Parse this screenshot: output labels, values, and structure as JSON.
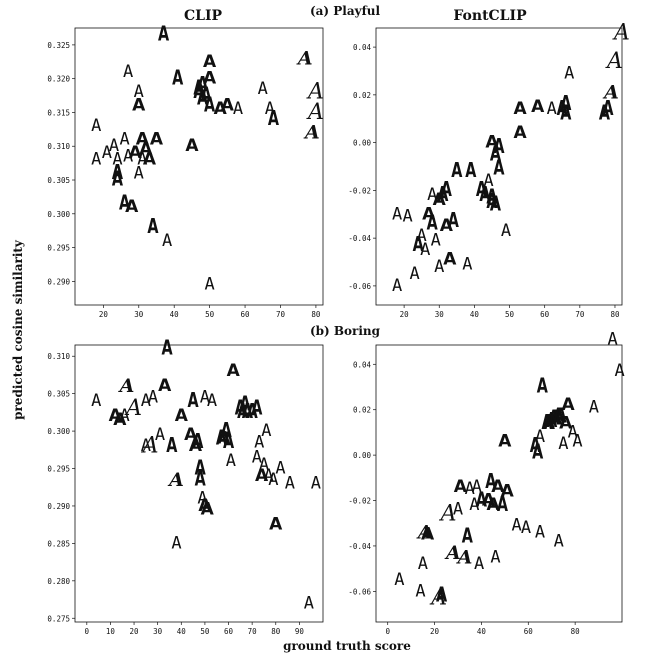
{
  "column_titles": [
    "CLIP",
    "FontCLIP"
  ],
  "y_axis_label": "predicted cosine similarity",
  "x_axis_label": "ground truth score",
  "chart_data": [
    {
      "type": "scatter",
      "row_title": "(a) Playful",
      "column": "CLIP",
      "xlim": [
        12,
        82
      ],
      "ylim": [
        0.2865,
        0.3275
      ],
      "xticks": [
        20,
        30,
        40,
        50,
        60,
        70,
        80
      ],
      "yticks": [
        0.29,
        0.295,
        0.3,
        0.305,
        0.31,
        0.315,
        0.32,
        0.325
      ],
      "ytick_format": 3,
      "marker": "letter A rendered in each font",
      "points": [
        {
          "x": 18,
          "y": 0.313,
          "w": 0
        },
        {
          "x": 18,
          "y": 0.308,
          "w": 0
        },
        {
          "x": 21,
          "y": 0.309,
          "w": 0
        },
        {
          "x": 23,
          "y": 0.31,
          "w": 0
        },
        {
          "x": 24,
          "y": 0.308,
          "w": 0
        },
        {
          "x": 24,
          "y": 0.306,
          "w": 2
        },
        {
          "x": 24,
          "y": 0.305,
          "w": 2
        },
        {
          "x": 26,
          "y": 0.311,
          "w": 0
        },
        {
          "x": 27,
          "y": 0.3085,
          "w": 0
        },
        {
          "x": 27,
          "y": 0.321,
          "w": 0
        },
        {
          "x": 26,
          "y": 0.3015,
          "w": 2
        },
        {
          "x": 28,
          "y": 0.301,
          "w": 1
        },
        {
          "x": 29,
          "y": 0.309,
          "w": 1
        },
        {
          "x": 30,
          "y": 0.318,
          "w": 0
        },
        {
          "x": 30,
          "y": 0.316,
          "w": 1
        },
        {
          "x": 30,
          "y": 0.306,
          "w": 0
        },
        {
          "x": 31,
          "y": 0.308,
          "w": 0
        },
        {
          "x": 31,
          "y": 0.311,
          "w": 1
        },
        {
          "x": 32,
          "y": 0.3095,
          "w": 1
        },
        {
          "x": 33,
          "y": 0.308,
          "w": 1
        },
        {
          "x": 35,
          "y": 0.311,
          "w": 1
        },
        {
          "x": 34,
          "y": 0.298,
          "w": 2
        },
        {
          "x": 38,
          "y": 0.296,
          "w": 0
        },
        {
          "x": 37,
          "y": 0.3265,
          "w": 2
        },
        {
          "x": 41,
          "y": 0.32,
          "w": 2
        },
        {
          "x": 45,
          "y": 0.31,
          "w": 1
        },
        {
          "x": 47,
          "y": 0.318,
          "w": 2
        },
        {
          "x": 47,
          "y": 0.3185,
          "w": 2
        },
        {
          "x": 48,
          "y": 0.319,
          "w": 2
        },
        {
          "x": 48,
          "y": 0.317,
          "w": 2
        },
        {
          "x": 49,
          "y": 0.3175,
          "w": 2
        },
        {
          "x": 50,
          "y": 0.3225,
          "w": 1
        },
        {
          "x": 50,
          "y": 0.32,
          "w": 1
        },
        {
          "x": 50,
          "y": 0.316,
          "w": 2
        },
        {
          "x": 53,
          "y": 0.3155,
          "w": 1
        },
        {
          "x": 55,
          "y": 0.316,
          "w": 1
        },
        {
          "x": 58,
          "y": 0.3155,
          "w": 0
        },
        {
          "x": 50,
          "y": 0.2895,
          "w": 0
        },
        {
          "x": 65,
          "y": 0.3185,
          "w": 0
        },
        {
          "x": 67,
          "y": 0.3155,
          "w": 0
        },
        {
          "x": 68,
          "y": 0.314,
          "w": 2
        },
        {
          "x": 77,
          "y": 0.323,
          "w": 3
        },
        {
          "x": 80,
          "y": 0.318,
          "w": 4
        },
        {
          "x": 80,
          "y": 0.315,
          "w": 4
        },
        {
          "x": 79,
          "y": 0.312,
          "w": 3
        }
      ]
    },
    {
      "type": "scatter",
      "row_title": "(a) Playful",
      "column": "FontCLIP",
      "xlim": [
        12,
        82
      ],
      "ylim": [
        -0.068,
        0.048
      ],
      "xticks": [
        20,
        30,
        40,
        50,
        60,
        70,
        80
      ],
      "yticks": [
        -0.06,
        -0.04,
        -0.02,
        0.0,
        0.02,
        0.04
      ],
      "ytick_format": 2,
      "marker": "letter A rendered in each font",
      "points": [
        {
          "x": 18,
          "y": -0.06,
          "w": 0
        },
        {
          "x": 18,
          "y": -0.03,
          "w": 0
        },
        {
          "x": 21,
          "y": -0.031,
          "w": 0
        },
        {
          "x": 23,
          "y": -0.055,
          "w": 0
        },
        {
          "x": 24,
          "y": -0.043,
          "w": 2
        },
        {
          "x": 25,
          "y": -0.039,
          "w": 0
        },
        {
          "x": 26,
          "y": -0.045,
          "w": 0
        },
        {
          "x": 27,
          "y": -0.03,
          "w": 1
        },
        {
          "x": 28,
          "y": -0.022,
          "w": 0
        },
        {
          "x": 28,
          "y": -0.034,
          "w": 2
        },
        {
          "x": 29,
          "y": -0.041,
          "w": 0
        },
        {
          "x": 30,
          "y": -0.024,
          "w": 1
        },
        {
          "x": 30,
          "y": -0.052,
          "w": 0
        },
        {
          "x": 31,
          "y": -0.022,
          "w": 2
        },
        {
          "x": 32,
          "y": -0.02,
          "w": 2
        },
        {
          "x": 32,
          "y": -0.035,
          "w": 1
        },
        {
          "x": 33,
          "y": -0.049,
          "w": 1
        },
        {
          "x": 34,
          "y": -0.033,
          "w": 2
        },
        {
          "x": 35,
          "y": -0.012,
          "w": 2
        },
        {
          "x": 38,
          "y": -0.051,
          "w": 0
        },
        {
          "x": 39,
          "y": -0.012,
          "w": 2
        },
        {
          "x": 42,
          "y": -0.02,
          "w": 2
        },
        {
          "x": 43,
          "y": -0.022,
          "w": 2
        },
        {
          "x": 44,
          "y": -0.016,
          "w": 0
        },
        {
          "x": 45,
          "y": -0.025,
          "w": 2
        },
        {
          "x": 45,
          "y": -0.023,
          "w": 2
        },
        {
          "x": 46,
          "y": -0.026,
          "w": 2
        },
        {
          "x": 45,
          "y": 0.0,
          "w": 1
        },
        {
          "x": 46,
          "y": -0.005,
          "w": 2
        },
        {
          "x": 47,
          "y": -0.002,
          "w": 2
        },
        {
          "x": 47,
          "y": -0.011,
          "w": 2
        },
        {
          "x": 49,
          "y": -0.037,
          "w": 0
        },
        {
          "x": 53,
          "y": 0.014,
          "w": 1
        },
        {
          "x": 53,
          "y": 0.004,
          "w": 1
        },
        {
          "x": 58,
          "y": 0.015,
          "w": 1
        },
        {
          "x": 62,
          "y": 0.014,
          "w": 0
        },
        {
          "x": 65,
          "y": 0.014,
          "w": 2
        },
        {
          "x": 66,
          "y": 0.012,
          "w": 2
        },
        {
          "x": 66,
          "y": 0.016,
          "w": 2
        },
        {
          "x": 67,
          "y": 0.029,
          "w": 0
        },
        {
          "x": 77,
          "y": 0.012,
          "w": 2
        },
        {
          "x": 78,
          "y": 0.014,
          "w": 2
        },
        {
          "x": 79,
          "y": 0.021,
          "w": 3
        },
        {
          "x": 80,
          "y": 0.034,
          "w": 4
        },
        {
          "x": 82,
          "y": 0.046,
          "w": 4
        }
      ]
    },
    {
      "type": "scatter",
      "row_title": "(b) Boring",
      "column": "CLIP",
      "xlim": [
        -5,
        100
      ],
      "ylim": [
        0.2745,
        0.3115
      ],
      "xticks": [
        0,
        10,
        20,
        30,
        40,
        50,
        60,
        70,
        80,
        90
      ],
      "yticks": [
        0.275,
        0.28,
        0.285,
        0.29,
        0.295,
        0.3,
        0.305,
        0.31
      ],
      "ytick_format": 3,
      "marker": "letter A rendered in each font",
      "points": [
        {
          "x": 4,
          "y": 0.304,
          "w": 0
        },
        {
          "x": 12,
          "y": 0.302,
          "w": 1
        },
        {
          "x": 14,
          "y": 0.3015,
          "w": 1
        },
        {
          "x": 16,
          "y": 0.302,
          "w": 0
        },
        {
          "x": 17,
          "y": 0.306,
          "w": 3
        },
        {
          "x": 20,
          "y": 0.303,
          "w": 4
        },
        {
          "x": 25,
          "y": 0.304,
          "w": 0
        },
        {
          "x": 25,
          "y": 0.298,
          "w": 0
        },
        {
          "x": 27,
          "y": 0.298,
          "w": 4
        },
        {
          "x": 28,
          "y": 0.3045,
          "w": 0
        },
        {
          "x": 31,
          "y": 0.2995,
          "w": 0
        },
        {
          "x": 33,
          "y": 0.306,
          "w": 1
        },
        {
          "x": 34,
          "y": 0.311,
          "w": 2
        },
        {
          "x": 36,
          "y": 0.298,
          "w": 2
        },
        {
          "x": 38,
          "y": 0.285,
          "w": 0
        },
        {
          "x": 38,
          "y": 0.2935,
          "w": 3
        },
        {
          "x": 40,
          "y": 0.302,
          "w": 1
        },
        {
          "x": 44,
          "y": 0.2995,
          "w": 1
        },
        {
          "x": 45,
          "y": 0.304,
          "w": 2
        },
        {
          "x": 46,
          "y": 0.298,
          "w": 1
        },
        {
          "x": 47,
          "y": 0.2985,
          "w": 2
        },
        {
          "x": 48,
          "y": 0.295,
          "w": 2
        },
        {
          "x": 48,
          "y": 0.2935,
          "w": 2
        },
        {
          "x": 49,
          "y": 0.291,
          "w": 0
        },
        {
          "x": 50,
          "y": 0.29,
          "w": 1
        },
        {
          "x": 51,
          "y": 0.2895,
          "w": 1
        },
        {
          "x": 50,
          "y": 0.3045,
          "w": 0
        },
        {
          "x": 53,
          "y": 0.304,
          "w": 0
        },
        {
          "x": 57,
          "y": 0.299,
          "w": 2
        },
        {
          "x": 58,
          "y": 0.299,
          "w": 1
        },
        {
          "x": 59,
          "y": 0.3,
          "w": 2
        },
        {
          "x": 60,
          "y": 0.2985,
          "w": 2
        },
        {
          "x": 61,
          "y": 0.296,
          "w": 0
        },
        {
          "x": 62,
          "y": 0.308,
          "w": 1
        },
        {
          "x": 65,
          "y": 0.303,
          "w": 2
        },
        {
          "x": 66,
          "y": 0.3025,
          "w": 2
        },
        {
          "x": 67,
          "y": 0.3035,
          "w": 2
        },
        {
          "x": 68,
          "y": 0.3025,
          "w": 2
        },
        {
          "x": 70,
          "y": 0.3025,
          "w": 2
        },
        {
          "x": 72,
          "y": 0.303,
          "w": 2
        },
        {
          "x": 72,
          "y": 0.2965,
          "w": 0
        },
        {
          "x": 73,
          "y": 0.2985,
          "w": 0
        },
        {
          "x": 74,
          "y": 0.294,
          "w": 1
        },
        {
          "x": 76,
          "y": 0.3,
          "w": 0
        },
        {
          "x": 75,
          "y": 0.2955,
          "w": 0
        },
        {
          "x": 77,
          "y": 0.294,
          "w": 0
        },
        {
          "x": 79,
          "y": 0.2935,
          "w": 0
        },
        {
          "x": 80,
          "y": 0.2875,
          "w": 1
        },
        {
          "x": 82,
          "y": 0.295,
          "w": 0
        },
        {
          "x": 86,
          "y": 0.293,
          "w": 0
        },
        {
          "x": 97,
          "y": 0.293,
          "w": 0
        },
        {
          "x": 94,
          "y": 0.277,
          "w": 0
        }
      ]
    },
    {
      "type": "scatter",
      "row_title": "(b) Boring",
      "column": "FontCLIP",
      "xlim": [
        -5,
        100
      ],
      "ylim": [
        -0.0735,
        0.0485
      ],
      "xticks": [
        0,
        20,
        40,
        60,
        80
      ],
      "yticks": [
        -0.06,
        -0.04,
        -0.02,
        0.0,
        0.02,
        0.04
      ],
      "ytick_format": 2,
      "marker": "letter A rendered in each font",
      "points": [
        {
          "x": 5,
          "y": -0.055,
          "w": 0
        },
        {
          "x": 14,
          "y": -0.06,
          "w": 0
        },
        {
          "x": 15,
          "y": -0.048,
          "w": 0
        },
        {
          "x": 16,
          "y": -0.034,
          "w": 3
        },
        {
          "x": 17,
          "y": -0.035,
          "w": 1
        },
        {
          "x": 22,
          "y": -0.063,
          "w": 4
        },
        {
          "x": 23,
          "y": -0.062,
          "w": 2
        },
        {
          "x": 26,
          "y": -0.026,
          "w": 4
        },
        {
          "x": 28,
          "y": -0.043,
          "w": 3
        },
        {
          "x": 30,
          "y": -0.024,
          "w": 0
        },
        {
          "x": 31,
          "y": -0.014,
          "w": 1
        },
        {
          "x": 33,
          "y": -0.045,
          "w": 3
        },
        {
          "x": 34,
          "y": -0.036,
          "w": 2
        },
        {
          "x": 35,
          "y": -0.015,
          "w": 0
        },
        {
          "x": 37,
          "y": -0.022,
          "w": 0
        },
        {
          "x": 38,
          "y": -0.014,
          "w": 0
        },
        {
          "x": 39,
          "y": -0.048,
          "w": 0
        },
        {
          "x": 40,
          "y": -0.02,
          "w": 2
        },
        {
          "x": 43,
          "y": -0.02,
          "w": 1
        },
        {
          "x": 44,
          "y": -0.012,
          "w": 2
        },
        {
          "x": 45,
          "y": -0.022,
          "w": 1
        },
        {
          "x": 46,
          "y": -0.045,
          "w": 0
        },
        {
          "x": 47,
          "y": -0.014,
          "w": 1
        },
        {
          "x": 49,
          "y": -0.022,
          "w": 2
        },
        {
          "x": 50,
          "y": 0.006,
          "w": 1
        },
        {
          "x": 51,
          "y": -0.016,
          "w": 1
        },
        {
          "x": 55,
          "y": -0.031,
          "w": 0
        },
        {
          "x": 59,
          "y": -0.032,
          "w": 0
        },
        {
          "x": 63,
          "y": 0.004,
          "w": 2
        },
        {
          "x": 64,
          "y": 0.001,
          "w": 2
        },
        {
          "x": 65,
          "y": 0.008,
          "w": 0
        },
        {
          "x": 66,
          "y": 0.03,
          "w": 2
        },
        {
          "x": 65,
          "y": -0.034,
          "w": 0
        },
        {
          "x": 68,
          "y": 0.014,
          "w": 2
        },
        {
          "x": 69,
          "y": 0.014,
          "w": 2
        },
        {
          "x": 70,
          "y": 0.015,
          "w": 2
        },
        {
          "x": 71,
          "y": 0.016,
          "w": 2
        },
        {
          "x": 72,
          "y": 0.016,
          "w": 2
        },
        {
          "x": 73,
          "y": 0.017,
          "w": 2
        },
        {
          "x": 74,
          "y": 0.017,
          "w": 2
        },
        {
          "x": 75,
          "y": 0.005,
          "w": 0
        },
        {
          "x": 76,
          "y": 0.014,
          "w": 1
        },
        {
          "x": 77,
          "y": 0.022,
          "w": 1
        },
        {
          "x": 79,
          "y": 0.01,
          "w": 0
        },
        {
          "x": 81,
          "y": 0.006,
          "w": 0
        },
        {
          "x": 73,
          "y": -0.038,
          "w": 0
        },
        {
          "x": 88,
          "y": 0.021,
          "w": 0
        },
        {
          "x": 96,
          "y": 0.051,
          "w": 0
        },
        {
          "x": 99,
          "y": 0.037,
          "w": 0
        }
      ]
    }
  ]
}
